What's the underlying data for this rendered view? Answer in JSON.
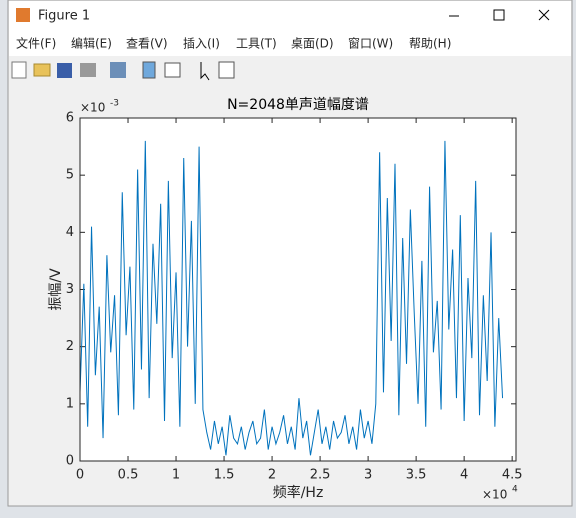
{
  "window": {
    "title": "Figure 1",
    "menu": [
      "文件(F)",
      "编辑(E)",
      "查看(V)",
      "插入(I)",
      "工具(T)",
      "桌面(D)",
      "窗口(W)",
      "帮助(H)"
    ]
  },
  "chart_data": {
    "type": "line",
    "title": "N=2048单声道幅度谱",
    "x_label": "频率/Hz",
    "y_label": "振幅/V",
    "x_multiplier": {
      "base": "×10",
      "exponent": "4"
    },
    "y_multiplier": {
      "base": "×10",
      "exponent": "-3"
    },
    "xlim": [
      0,
      4.54
    ],
    "ylim": [
      0,
      6
    ],
    "xticks": [
      0,
      0.5,
      1,
      1.5,
      2,
      2.5,
      3,
      3.5,
      4,
      4.5
    ],
    "yticks": [
      0,
      1,
      2,
      3,
      4,
      5,
      6
    ],
    "grid": false,
    "x": [
      0,
      0.04,
      0.08,
      0.12,
      0.16,
      0.2,
      0.24,
      0.28,
      0.32,
      0.36,
      0.4,
      0.44,
      0.48,
      0.52,
      0.56,
      0.6,
      0.64,
      0.68,
      0.72,
      0.76,
      0.8,
      0.84,
      0.88,
      0.92,
      0.96,
      1,
      1.04,
      1.08,
      1.12,
      1.16,
      1.2,
      1.24,
      1.28,
      1.32,
      1.36,
      1.4,
      1.44,
      1.48,
      1.52,
      1.56,
      1.6,
      1.64,
      1.68,
      1.72,
      1.76,
      1.8,
      1.84,
      1.88,
      1.92,
      1.96,
      2,
      2.04,
      2.08,
      2.12,
      2.16,
      2.2,
      2.24,
      2.28,
      2.32,
      2.36,
      2.4,
      2.44,
      2.48,
      2.52,
      2.56,
      2.6,
      2.64,
      2.68,
      2.72,
      2.76,
      2.8,
      2.84,
      2.88,
      2.92,
      2.96,
      3,
      3.04,
      3.08,
      3.12,
      3.16,
      3.2,
      3.24,
      3.28,
      3.32,
      3.36,
      3.4,
      3.44,
      3.48,
      3.52,
      3.56,
      3.6,
      3.64,
      3.68,
      3.72,
      3.76,
      3.8,
      3.84,
      3.88,
      3.92,
      3.96,
      4,
      4.04,
      4.08,
      4.12,
      4.16,
      4.2,
      4.24,
      4.28,
      4.32,
      4.36,
      4.4
    ],
    "series": [
      {
        "color": "#0072bd",
        "values": [
          1.2,
          3.1,
          0.6,
          4.1,
          1.5,
          2.7,
          0.4,
          3.6,
          1.9,
          2.9,
          0.8,
          4.7,
          2.2,
          3.4,
          0.9,
          5.1,
          1.6,
          5.6,
          1.1,
          3.8,
          2.4,
          4.5,
          0.7,
          4.9,
          1.8,
          3.3,
          0.6,
          5.3,
          2.0,
          4.2,
          1.0,
          5.5,
          0.9,
          0.5,
          0.2,
          0.7,
          0.3,
          0.6,
          0.1,
          0.8,
          0.4,
          0.3,
          0.6,
          0.2,
          0.5,
          0.7,
          0.3,
          0.4,
          0.9,
          0.2,
          0.6,
          0.3,
          0.5,
          0.8,
          0.3,
          0.6,
          0.2,
          1.1,
          0.4,
          0.7,
          0.1,
          0.5,
          0.9,
          0.3,
          0.6,
          0.2,
          0.7,
          0.4,
          0.5,
          0.8,
          0.3,
          0.6,
          0.2,
          0.9,
          0.4,
          0.7,
          0.3,
          1.0,
          5.4,
          1.2,
          4.6,
          2.1,
          5.2,
          0.8,
          3.9,
          1.7,
          4.4,
          2.6,
          1.0,
          3.5,
          0.6,
          4.8,
          1.9,
          2.8,
          0.9,
          5.6,
          2.3,
          3.7,
          1.1,
          4.3,
          0.7,
          3.2,
          1.8,
          4.9,
          0.8,
          2.9,
          1.4,
          4.0,
          0.6,
          2.5,
          1.1
        ]
      }
    ]
  }
}
